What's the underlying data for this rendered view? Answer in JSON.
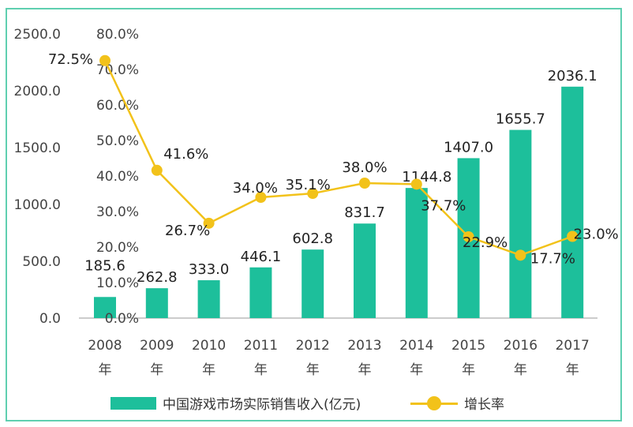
{
  "chart_data": {
    "type": "bar+line",
    "categories": [
      "2008\n年",
      "2009\n年",
      "2010\n年",
      "2011\n年",
      "2012\n年",
      "2013\n年",
      "2014\n年",
      "2015\n年",
      "2016\n年",
      "2017\n年"
    ],
    "category_years": [
      "2008",
      "2009",
      "2010",
      "2011",
      "2012",
      "2013",
      "2014",
      "2015",
      "2016",
      "2017"
    ],
    "category_suffix": "年",
    "series": [
      {
        "name": "中国游戏市场实际销售收入(亿元)",
        "type": "bar",
        "axis": "left",
        "values": [
          185.6,
          262.8,
          333.0,
          446.1,
          602.8,
          831.7,
          1144.8,
          1407.0,
          1655.7,
          2036.1
        ],
        "labels": [
          "185.6",
          "262.8",
          "333.0",
          "446.1",
          "602.8",
          "831.7",
          "1144.8",
          "1407.0",
          "1655.7",
          "2036.1"
        ],
        "color": "#1dbf9b"
      },
      {
        "name": "增长率",
        "type": "line",
        "axis": "right",
        "values": [
          72.5,
          41.6,
          26.7,
          34.0,
          35.1,
          38.0,
          37.7,
          22.9,
          17.7,
          23.0
        ],
        "labels": [
          "72.5%",
          "41.6%",
          "26.7%",
          "34.0%",
          "35.1%",
          "38.0%",
          "37.7%",
          "22.9%",
          "17.7%",
          "23.0%"
        ],
        "color": "#f2c21a"
      }
    ],
    "y_left": {
      "range": [
        0,
        2500
      ],
      "ticks": [
        "0.0",
        "500.0",
        "1000.0",
        "1500.0",
        "2000.0",
        "2500.0"
      ]
    },
    "y_right": {
      "range": [
        0,
        80
      ],
      "ticks": [
        "0.0%",
        "10.0%",
        "20.0%",
        "30.0%",
        "40.0%",
        "50.0%",
        "60.0%",
        "70.0%",
        "80.0%"
      ]
    },
    "grid": false,
    "legend": "bottom",
    "frame_color": "#5fcfb0"
  }
}
